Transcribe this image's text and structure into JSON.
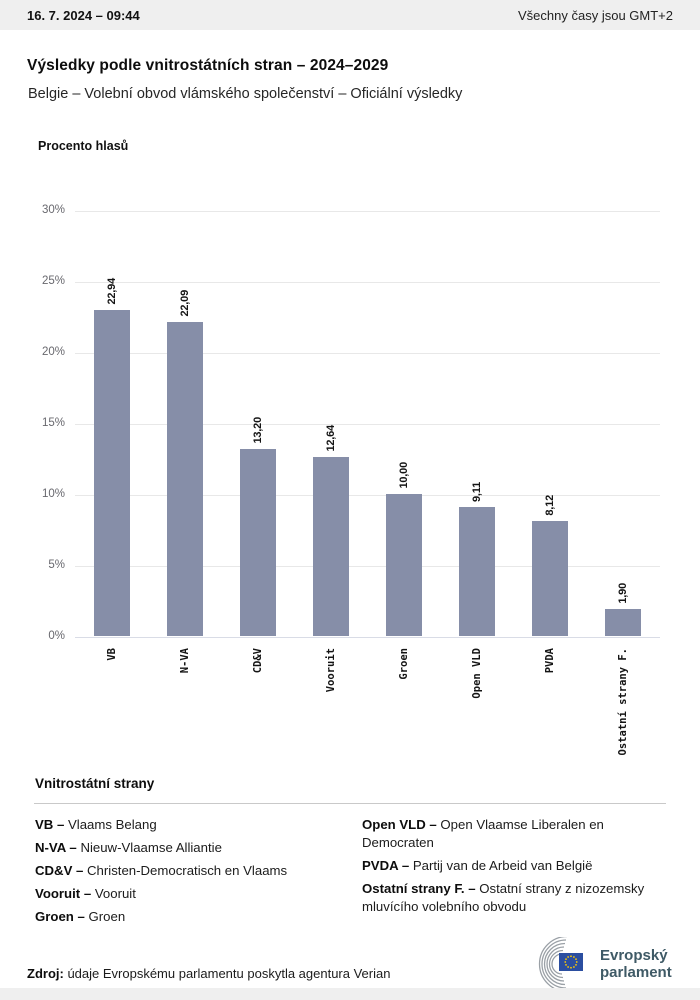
{
  "topbar": {
    "datetime": "16. 7. 2024 – 09:44",
    "timezone_note": "Všechny časy jsou GMT+2"
  },
  "header": {
    "title": "Výsledky podle vnitrostátních stran – 2024–2029",
    "subtitle": "Belgie – Volební obvod vlámského společenství – Oficiální výsledky"
  },
  "chart_data": {
    "type": "bar",
    "ylabel": "Procento hlasů",
    "categories": [
      "VB",
      "N-VA",
      "CD&V",
      "Vooruit",
      "Groen",
      "Open VLD",
      "PVDA",
      "Ostatní strany F."
    ],
    "values": [
      22.94,
      22.09,
      13.2,
      12.64,
      10.0,
      9.11,
      8.12,
      1.9
    ],
    "display_values": [
      "22,94",
      "22,09",
      "13,20",
      "12,64",
      "10,00",
      "9,11",
      "8,12",
      "1,90"
    ],
    "ylim": [
      0,
      30
    ],
    "yticks": [
      {
        "value": 30,
        "label": "30%"
      },
      {
        "value": 25,
        "label": "25%"
      },
      {
        "value": 20,
        "label": "20%"
      },
      {
        "value": 15,
        "label": "15%"
      },
      {
        "value": 10,
        "label": "10%"
      },
      {
        "value": 5,
        "label": "5%"
      },
      {
        "value": 0,
        "label": "0%"
      }
    ],
    "grid": "horizontal",
    "legend_position": "none",
    "bar_color": "#868EA8"
  },
  "legend": {
    "title": "Vnitrostátní strany",
    "columns": [
      [
        {
          "label": "VB –",
          "name": "Vlaams Belang"
        },
        {
          "label": "N-VA –",
          "name": "Nieuw-Vlaamse Alliantie"
        },
        {
          "label": "CD&V –",
          "name": "Christen-Democratisch en Vlaams"
        },
        {
          "label": "Vooruit –",
          "name": "Vooruit"
        },
        {
          "label": "Groen –",
          "name": "Groen"
        }
      ],
      [
        {
          "label": "Open VLD –",
          "name": "Open Vlaamse Liberalen en Democraten"
        },
        {
          "label": "PVDA –",
          "name": "Partij van de Arbeid van België"
        },
        {
          "label": "Ostatní strany F. –",
          "name": "Ostatní strany z nizozemsky mluvícího volebního obvodu"
        }
      ]
    ]
  },
  "source": {
    "label": "Zdroj:",
    "text": " údaje Evropskému parlamentu poskytla agentura Verian"
  },
  "logo": {
    "line1": "Evropský",
    "line2": "parlament"
  },
  "colors": {
    "bar": "#868EA8",
    "topbar_bg": "#efefef",
    "gridline": "#e8e8e8",
    "baseline": "#d9dce6",
    "logo_text": "#3F5A66",
    "eu_flag_blue": "#2B4EA0",
    "eu_star_yellow": "#FFCC00"
  }
}
